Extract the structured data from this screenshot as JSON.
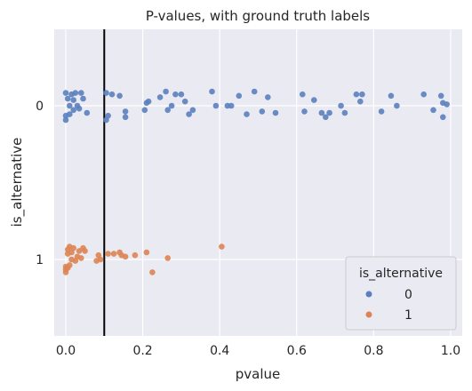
{
  "chart_data": {
    "type": "scatter",
    "subtype": "strip",
    "title": "P-values, with ground truth labels",
    "xlabel": "pvalue",
    "ylabel": "is_alternative",
    "xlim": [
      -0.03,
      1.03
    ],
    "xticks": [
      0.0,
      0.2,
      0.4,
      0.6,
      0.8,
      1.0
    ],
    "xtick_labels": [
      "0.0",
      "0.2",
      "0.4",
      "0.6",
      "0.8",
      "1.0"
    ],
    "categories": [
      "0",
      "1"
    ],
    "grid": true,
    "vline": {
      "x": 0.1,
      "color": "#000000"
    },
    "legend": {
      "title": "is_alternative",
      "placement": "lower-right",
      "entries": [
        "0",
        "1"
      ]
    },
    "series": [
      {
        "name": "0",
        "color": "#5b7fbe",
        "points": [
          [
            0.0,
            0.09
          ],
          [
            0.005,
            0.05
          ],
          [
            0.0,
            -0.07
          ],
          [
            0.0,
            -0.1
          ],
          [
            0.01,
            0.0
          ],
          [
            0.015,
            0.08
          ],
          [
            0.01,
            -0.06
          ],
          [
            0.02,
            -0.03
          ],
          [
            0.025,
            0.09
          ],
          [
            0.02,
            0.04
          ],
          [
            0.03,
            0.0
          ],
          [
            0.035,
            -0.02
          ],
          [
            0.04,
            0.09
          ],
          [
            0.045,
            0.05
          ],
          [
            0.055,
            -0.05
          ],
          [
            0.105,
            0.09
          ],
          [
            0.11,
            -0.07
          ],
          [
            0.105,
            -0.1
          ],
          [
            0.12,
            0.08
          ],
          [
            0.14,
            0.07
          ],
          [
            0.155,
            -0.04
          ],
          [
            0.155,
            -0.08
          ],
          [
            0.205,
            -0.03
          ],
          [
            0.21,
            0.02
          ],
          [
            0.215,
            0.03
          ],
          [
            0.245,
            0.06
          ],
          [
            0.26,
            0.1
          ],
          [
            0.265,
            -0.03
          ],
          [
            0.275,
            0.0
          ],
          [
            0.285,
            0.08
          ],
          [
            0.3,
            0.08
          ],
          [
            0.31,
            0.03
          ],
          [
            0.32,
            -0.06
          ],
          [
            0.33,
            -0.03
          ],
          [
            0.38,
            0.1
          ],
          [
            0.39,
            0.0
          ],
          [
            0.42,
            0.0
          ],
          [
            0.43,
            0.0
          ],
          [
            0.45,
            0.07
          ],
          [
            0.47,
            -0.06
          ],
          [
            0.49,
            0.1
          ],
          [
            0.51,
            -0.04
          ],
          [
            0.525,
            0.06
          ],
          [
            0.545,
            -0.05
          ],
          [
            0.615,
            0.08
          ],
          [
            0.62,
            -0.04
          ],
          [
            0.645,
            0.04
          ],
          [
            0.665,
            -0.05
          ],
          [
            0.675,
            -0.08
          ],
          [
            0.685,
            -0.05
          ],
          [
            0.715,
            0.0
          ],
          [
            0.725,
            -0.05
          ],
          [
            0.755,
            0.08
          ],
          [
            0.765,
            0.03
          ],
          [
            0.77,
            0.08
          ],
          [
            0.82,
            -0.04
          ],
          [
            0.845,
            0.07
          ],
          [
            0.86,
            0.0
          ],
          [
            0.93,
            0.08
          ],
          [
            0.955,
            -0.03
          ],
          [
            0.975,
            0.07
          ],
          [
            0.98,
            0.02
          ],
          [
            0.98,
            -0.08
          ],
          [
            0.99,
            0.01
          ]
        ]
      },
      {
        "name": "1",
        "color": "#dd8452",
        "points": [
          [
            0.0,
            -0.09
          ],
          [
            0.0,
            -0.07
          ],
          [
            0.005,
            -0.06
          ],
          [
            0.0,
            -0.05
          ],
          [
            0.005,
            0.04
          ],
          [
            0.005,
            0.07
          ],
          [
            0.01,
            0.09
          ],
          [
            0.01,
            -0.04
          ],
          [
            0.015,
            0.05
          ],
          [
            0.015,
            0.0
          ],
          [
            0.02,
            0.08
          ],
          [
            0.025,
            -0.01
          ],
          [
            0.03,
            0.02
          ],
          [
            0.035,
            0.06
          ],
          [
            0.04,
            0.01
          ],
          [
            0.045,
            0.08
          ],
          [
            0.05,
            0.06
          ],
          [
            0.08,
            -0.01
          ],
          [
            0.085,
            0.03
          ],
          [
            0.09,
            0.0
          ],
          [
            0.11,
            0.04
          ],
          [
            0.125,
            0.04
          ],
          [
            0.14,
            0.05
          ],
          [
            0.145,
            0.03
          ],
          [
            0.155,
            0.02
          ],
          [
            0.18,
            0.03
          ],
          [
            0.21,
            0.05
          ],
          [
            0.225,
            -0.09
          ],
          [
            0.265,
            0.01
          ],
          [
            0.405,
            0.09
          ]
        ]
      }
    ]
  }
}
